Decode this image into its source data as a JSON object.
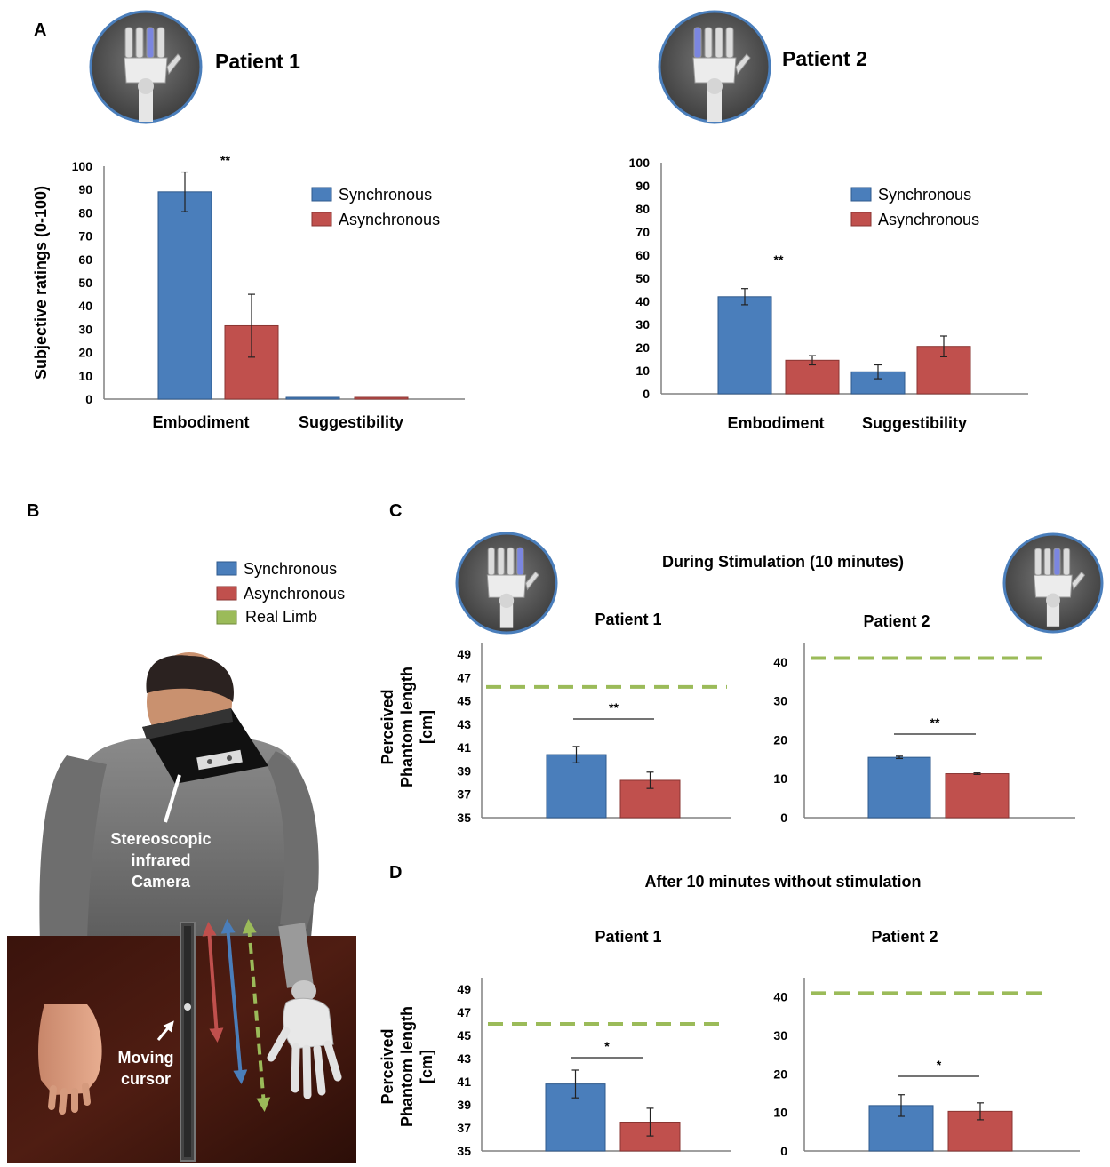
{
  "panel_labels": {
    "a": "A",
    "b": "B",
    "c": "C",
    "d": "D"
  },
  "colors": {
    "sync": "#4a7ebb",
    "async": "#c0504d",
    "real": "#9bbb59",
    "axis": "#808080"
  },
  "legend": {
    "sync": "Synchronous",
    "async": "Asynchronous",
    "real": "Real Limb"
  },
  "panel_a": {
    "patient1_title": "Patient 1",
    "patient2_title": "Patient 2",
    "ylabel": "Subjective ratings (0-100)"
  },
  "panel_b": {
    "camera_label": [
      "Stereoscopic",
      "infrared",
      "Camera"
    ],
    "cursor_label": [
      "Moving",
      "cursor"
    ]
  },
  "panel_c": {
    "title": "During Stimulation (10 minutes)"
  },
  "panel_d": {
    "title": "After 10 minutes without stimulation"
  },
  "phantom_ylabel": [
    "Perceived",
    "Phantom length",
    "[cm]"
  ],
  "chart_data": [
    {
      "id": "a1",
      "type": "bar",
      "title": "Patient 1",
      "categories": [
        "Embodiment",
        "Suggestibility"
      ],
      "ylabel": "Subjective ratings (0-100)",
      "ylim": [
        0,
        100
      ],
      "yticks": [
        0,
        10,
        20,
        30,
        40,
        50,
        60,
        70,
        80,
        90,
        100
      ],
      "series": [
        {
          "name": "Synchronous",
          "values": [
            89,
            0
          ],
          "errors": [
            8.5,
            0
          ]
        },
        {
          "name": "Asynchronous",
          "values": [
            31.5,
            0
          ],
          "errors": [
            13.5,
            0
          ]
        }
      ],
      "annotations": [
        {
          "text": "**",
          "category": 0
        }
      ]
    },
    {
      "id": "a2",
      "type": "bar",
      "title": "Patient 2",
      "categories": [
        "Embodiment",
        "Suggestibility"
      ],
      "ylim": [
        0,
        100
      ],
      "yticks": [
        0,
        10,
        20,
        30,
        40,
        50,
        60,
        70,
        80,
        90,
        100
      ],
      "series": [
        {
          "name": "Synchronous",
          "values": [
            42,
            9.5
          ],
          "errors": [
            3.5,
            3
          ]
        },
        {
          "name": "Asynchronous",
          "values": [
            14.5,
            20.5
          ],
          "errors": [
            2,
            4.5
          ]
        }
      ],
      "annotations": [
        {
          "text": "**",
          "category": 0
        }
      ]
    },
    {
      "id": "c1",
      "type": "bar",
      "title": "Patient 1",
      "ylabel": "Perceived Phantom length [cm]",
      "ylim": [
        35,
        50
      ],
      "yticks": [
        35,
        37,
        39,
        41,
        43,
        45,
        47,
        49
      ],
      "series": [
        {
          "name": "Synchronous",
          "values": [
            40.4
          ],
          "errors": [
            0.7
          ]
        },
        {
          "name": "Asynchronous",
          "values": [
            38.2
          ],
          "errors": [
            0.7
          ]
        }
      ],
      "reference": {
        "name": "Real Limb",
        "value": 46.2
      },
      "annotation": "**"
    },
    {
      "id": "c2",
      "type": "bar",
      "title": "Patient 2",
      "ylim": [
        0,
        45
      ],
      "yticks": [
        0,
        10,
        20,
        30,
        40
      ],
      "series": [
        {
          "name": "Synchronous",
          "values": [
            15.5
          ],
          "errors": [
            0.3
          ]
        },
        {
          "name": "Asynchronous",
          "values": [
            11.3
          ],
          "errors": [
            0.2
          ]
        }
      ],
      "reference": {
        "name": "Real Limb",
        "value": 41
      },
      "annotation": "**"
    },
    {
      "id": "d1",
      "type": "bar",
      "title": "Patient 1",
      "ylabel": "Perceived Phantom length [cm]",
      "ylim": [
        35,
        50
      ],
      "yticks": [
        35,
        37,
        39,
        41,
        43,
        45,
        47,
        49
      ],
      "series": [
        {
          "name": "Synchronous",
          "values": [
            40.8
          ],
          "errors": [
            1.2
          ]
        },
        {
          "name": "Asynchronous",
          "values": [
            37.5
          ],
          "errors": [
            1.2
          ]
        }
      ],
      "reference": {
        "name": "Real Limb",
        "value": 46
      },
      "annotation": "*"
    },
    {
      "id": "d2",
      "type": "bar",
      "title": "Patient 2",
      "ylim": [
        0,
        45
      ],
      "yticks": [
        0,
        10,
        20,
        30,
        40
      ],
      "series": [
        {
          "name": "Synchronous",
          "values": [
            11.8
          ],
          "errors": [
            2.8
          ]
        },
        {
          "name": "Asynchronous",
          "values": [
            10.3
          ],
          "errors": [
            2.2
          ]
        }
      ],
      "reference": {
        "name": "Real Limb",
        "value": 41
      },
      "annotation": "*"
    }
  ]
}
